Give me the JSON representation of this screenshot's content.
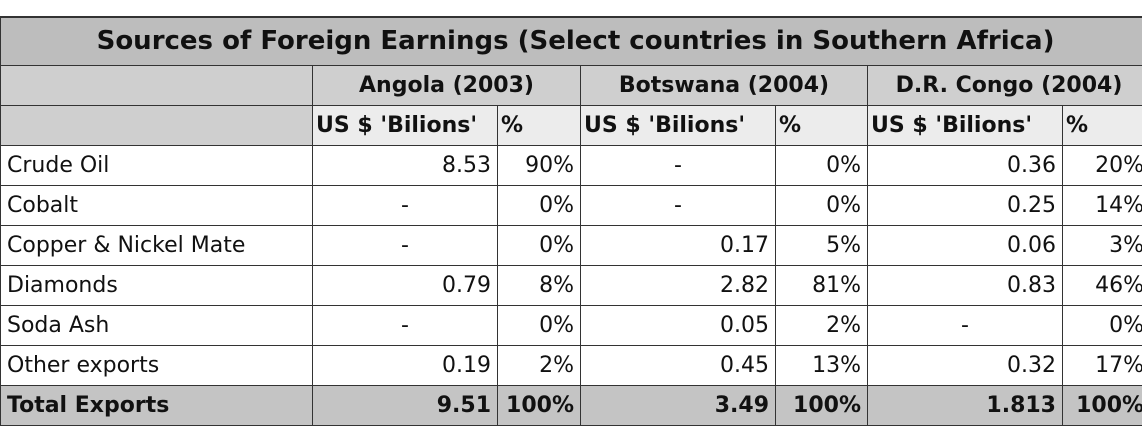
{
  "table": {
    "title": "Sources of Foreign Earnings (Select countries in Southern Africa)",
    "groups": [
      "Angola (2003)",
      "Botswana (2004)",
      "D.R. Congo (2004)"
    ],
    "subheaders": [
      "US $ 'Bilions'",
      "%",
      "US $ 'Bilions'",
      "%",
      "US $ 'Bilions'",
      "%"
    ],
    "rows": [
      [
        "Crude Oil",
        "8.53",
        "90%",
        "-",
        "0%",
        "0.36",
        "20%"
      ],
      [
        "Cobalt",
        "-",
        "0%",
        "-",
        "0%",
        "0.25",
        "14%"
      ],
      [
        "Copper & Nickel Mate",
        "-",
        "0%",
        "0.17",
        "5%",
        "0.06",
        "3%"
      ],
      [
        "Diamonds",
        "0.79",
        "8%",
        "2.82",
        "81%",
        "0.83",
        "46%"
      ],
      [
        "Soda Ash",
        "-",
        "0%",
        "0.05",
        "2%",
        "-",
        "0%"
      ],
      [
        "Other exports",
        "0.19",
        "2%",
        "0.45",
        "13%",
        "0.32",
        "17%"
      ]
    ],
    "total": [
      "Total Exports",
      "9.51",
      "100%",
      "3.49",
      "100%",
      "1.813",
      "100%"
    ]
  }
}
